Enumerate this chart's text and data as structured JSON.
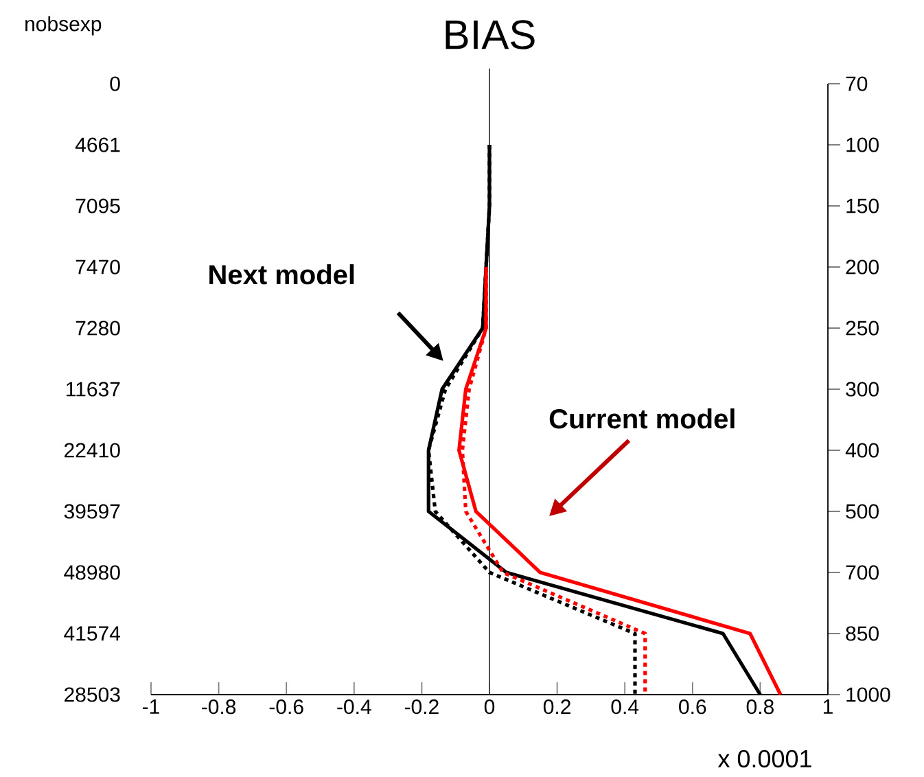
{
  "chart_data": {
    "type": "line",
    "orientation": "horizontal",
    "title": "BIAS",
    "ylabel": "nobsexp",
    "xlim": [
      -1,
      1
    ],
    "xticks": [
      -1,
      -0.8,
      -0.6,
      -0.4,
      -0.2,
      0,
      0.2,
      0.4,
      0.6,
      0.8,
      1
    ],
    "categories": [
      "70",
      "100",
      "150",
      "200",
      "250",
      "300",
      "400",
      "500",
      "700",
      "850",
      "1000"
    ],
    "y2_categories": [
      "0",
      "4661",
      "7095",
      "7470",
      "7280",
      "11637",
      "22410",
      "39597",
      "48980",
      "41574",
      "28503"
    ],
    "series": [
      {
        "color": "#000000",
        "line_style": "solid",
        "values": [
          null,
          0.0,
          0.0,
          -0.01,
          -0.02,
          -0.14,
          -0.18,
          -0.18,
          0.05,
          0.69,
          0.8
        ]
      },
      {
        "color": "#000000",
        "line_style": "dotted",
        "values": [
          null,
          0.0,
          0.0,
          -0.01,
          -0.02,
          -0.13,
          -0.18,
          -0.16,
          0.0,
          0.43,
          0.43
        ]
      },
      {
        "color": "#ff0000",
        "line_style": "solid",
        "values": [
          null,
          null,
          null,
          -0.01,
          -0.01,
          -0.07,
          -0.09,
          -0.04,
          0.15,
          0.77,
          0.86
        ]
      },
      {
        "color": "#ff0000",
        "line_style": "dotted",
        "values": [
          null,
          null,
          null,
          -0.01,
          -0.01,
          -0.06,
          -0.08,
          -0.07,
          0.04,
          0.46,
          0.46
        ]
      }
    ],
    "ref_lines": [
      {
        "axis": "x",
        "value": 0,
        "color": "#404040"
      }
    ],
    "annotations": [
      "Next model",
      "Current model",
      "x 0.0001"
    ]
  }
}
